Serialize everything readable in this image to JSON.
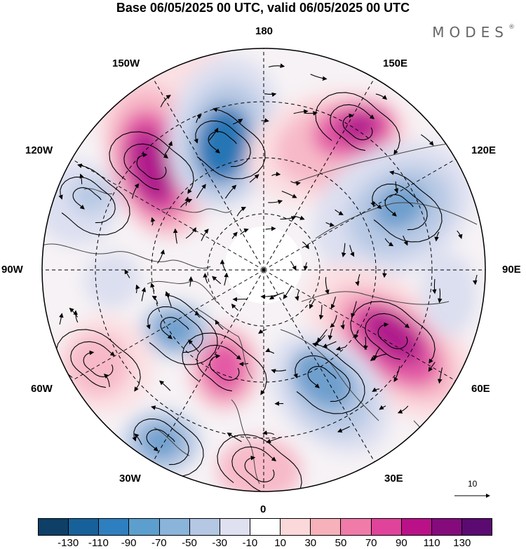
{
  "title": "Base 06/05/2025 00 UTC, valid 06/05/2025 00 UTC",
  "brand": {
    "name": "MODES",
    "mark": "®"
  },
  "longitude_labels": {
    "top": "180",
    "top_left": "150W",
    "top_right": "150E",
    "upper_left": "120W",
    "upper_right": "120E",
    "left": "90W",
    "right": "90E",
    "lower_left": "60W",
    "lower_right": "60E",
    "bottom_left": "30W",
    "bottom_right": "30E",
    "bottom": "0"
  },
  "reference_vector": {
    "label": "10"
  },
  "colorbar": {
    "colors": [
      "#0d3f67",
      "#17619a",
      "#2e7fbf",
      "#5c9fcf",
      "#8ab4da",
      "#b4c7e3",
      "#dfe0f0",
      "#ffffff",
      "#fbd8d9",
      "#f6b1ba",
      "#f07aa8",
      "#e0449a",
      "#bb1188",
      "#850b7d",
      "#5a0a70"
    ],
    "tick_labels": [
      "-130",
      "-110",
      "-90",
      "-70",
      "-50",
      "-30",
      "-10",
      "10",
      "30",
      "50",
      "70",
      "90",
      "110",
      "130"
    ]
  },
  "anomaly_colors": {
    "strong_positive": "#b01a8c",
    "positive": "#e35aa5",
    "weak_positive": "#f7b9c8",
    "faint_positive": "#fbe0e3",
    "strong_negative": "#2876b5",
    "negative": "#6e9fcd",
    "weak_negative": "#b8c9e4",
    "faint_negative": "#dcdff0"
  }
}
